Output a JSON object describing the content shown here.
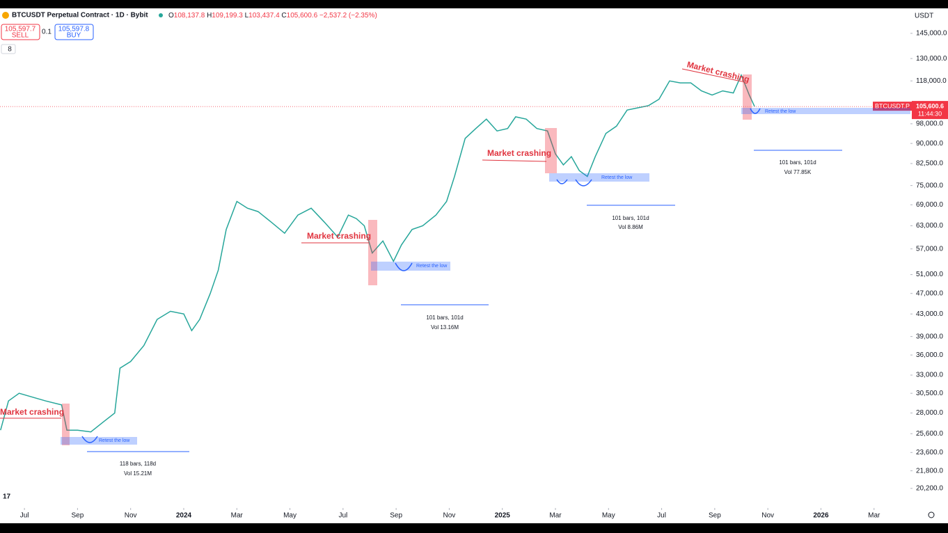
{
  "header": {
    "title": "BTCUSDT Perpetual Contract · 1D · Bybit",
    "ohlc": [
      {
        "key": "O",
        "value": "108,137.8"
      },
      {
        "key": "H",
        "value": "109,199.3"
      },
      {
        "key": "L",
        "value": "103,437.4"
      },
      {
        "key": "C",
        "value": "105,600.6"
      }
    ],
    "change": "−2,537.2 (−2.35%)",
    "sell_price": "105,597.7",
    "sell": "SELL",
    "spread": "0.1",
    "buy_price": "105,597.8",
    "buy": "BUY",
    "indicators": "8",
    "currency": "USDT",
    "symbol_tag": "BTCUSDT.P",
    "countdown": "11:44:30"
  },
  "annotations": {
    "market_crashing": [
      "Market crashing",
      "Market crashing",
      "Market crashing",
      "Market crashing"
    ],
    "retest": [
      "Retest the low",
      "Retest the low",
      "Retest the low",
      "Retest the low"
    ],
    "measures": [
      {
        "bars": "118 bars, 118d",
        "vol": "Vol 15.21M"
      },
      {
        "bars": "101 bars, 101d",
        "vol": "Vol 13.16M"
      },
      {
        "bars": "101 bars, 101d",
        "vol": "Vol 8.86M"
      },
      {
        "bars": "101 bars, 101d",
        "vol": "Vol 77.85K"
      }
    ]
  },
  "chart_data": {
    "type": "line",
    "log_scale": true,
    "xlim": [
      -0.92,
      33.37
    ],
    "ylim": [
      18560,
      160600
    ],
    "xticks": [
      {
        "value": 0,
        "label": "Jul"
      },
      {
        "value": 2,
        "label": "Sep"
      },
      {
        "value": 4,
        "label": "Nov"
      },
      {
        "value": 6,
        "label": "2024"
      },
      {
        "value": 8,
        "label": "Mar"
      },
      {
        "value": 10,
        "label": "May"
      },
      {
        "value": 12,
        "label": "Jul"
      },
      {
        "value": 14,
        "label": "Sep"
      },
      {
        "value": 16,
        "label": "Nov"
      },
      {
        "value": 18,
        "label": "2025"
      },
      {
        "value": 20,
        "label": "Mar"
      },
      {
        "value": 22,
        "label": "May"
      },
      {
        "value": 24,
        "label": "Jul"
      },
      {
        "value": 26,
        "label": "Sep"
      },
      {
        "value": 28,
        "label": "Nov"
      },
      {
        "value": 30,
        "label": "2026"
      },
      {
        "value": 32,
        "label": "Mar"
      }
    ],
    "yticks": [
      {
        "value": 145000,
        "label": "145,000.0"
      },
      {
        "value": 130000,
        "label": "130,000.0"
      },
      {
        "value": 118000,
        "label": "118,000.0"
      },
      {
        "value": 98000,
        "label": "98,000.0"
      },
      {
        "value": 90000,
        "label": "90,000.0"
      },
      {
        "value": 82500,
        "label": "82,500.0"
      },
      {
        "value": 75000,
        "label": "75,000.0"
      },
      {
        "value": 69000,
        "label": "69,000.0"
      },
      {
        "value": 63000,
        "label": "63,000.0"
      },
      {
        "value": 57000,
        "label": "57,000.0"
      },
      {
        "value": 51000,
        "label": "51,000.0"
      },
      {
        "value": 47000,
        "label": "47,000.0"
      },
      {
        "value": 43000,
        "label": "43,000.0"
      },
      {
        "value": 39000,
        "label": "39,000.0"
      },
      {
        "value": 36000,
        "label": "36,000.0"
      },
      {
        "value": 33000,
        "label": "33,000.0"
      },
      {
        "value": 30500,
        "label": "30,500.0"
      },
      {
        "value": 28000,
        "label": "28,000.0"
      },
      {
        "value": 25600,
        "label": "25,600.0"
      },
      {
        "value": 23600,
        "label": "23,600.0"
      },
      {
        "value": 21800,
        "label": "21,800.0"
      },
      {
        "value": 20200,
        "label": "20,200.0"
      }
    ],
    "last_price": {
      "value": 105600.6,
      "label": "105,600.6"
    },
    "series": [
      {
        "color": "#26a69a",
        "x": [
          -0.9,
          -0.6,
          -0.2,
          0.3,
          0.8,
          1.4,
          1.6,
          2.0,
          2.5,
          3.0,
          3.4,
          3.6,
          4.0,
          4.5,
          5.0,
          5.5,
          6.0,
          6.3,
          6.6,
          7.0,
          7.3,
          7.6,
          8.0,
          8.4,
          8.8,
          9.3,
          9.8,
          10.3,
          10.8,
          11.3,
          11.8,
          12.2,
          12.5,
          12.8,
          13.1,
          13.5,
          13.9,
          14.2,
          14.6,
          15.0,
          15.5,
          15.9,
          16.2,
          16.6,
          17.0,
          17.4,
          17.8,
          18.2,
          18.5,
          18.9,
          19.3,
          19.7,
          20.0,
          20.3,
          20.6,
          20.9,
          21.2,
          21.5,
          21.9,
          22.3,
          22.7,
          23.1,
          23.5,
          23.9,
          24.3,
          24.7,
          25.1,
          25.5,
          25.9,
          26.3,
          26.7,
          27.0,
          27.3,
          27.5
        ],
        "values": [
          26000,
          29500,
          30500,
          30000,
          29500,
          29000,
          26000,
          26000,
          25800,
          27000,
          28000,
          34000,
          35000,
          37500,
          42000,
          43500,
          43000,
          40000,
          42000,
          47000,
          52000,
          62000,
          70000,
          68000,
          67000,
          64000,
          61000,
          66000,
          68000,
          64000,
          60000,
          66000,
          65000,
          63000,
          56000,
          59000,
          54000,
          58000,
          62000,
          63000,
          66000,
          70000,
          78000,
          92000,
          96000,
          100000,
          95000,
          96000,
          101000,
          100000,
          96000,
          95000,
          86000,
          82000,
          85000,
          80000,
          78000,
          85000,
          94000,
          97000,
          104000,
          105000,
          106000,
          109000,
          118000,
          117000,
          117000,
          113000,
          111000,
          113000,
          112000,
          121000,
          111000,
          105600
        ]
      }
    ]
  }
}
